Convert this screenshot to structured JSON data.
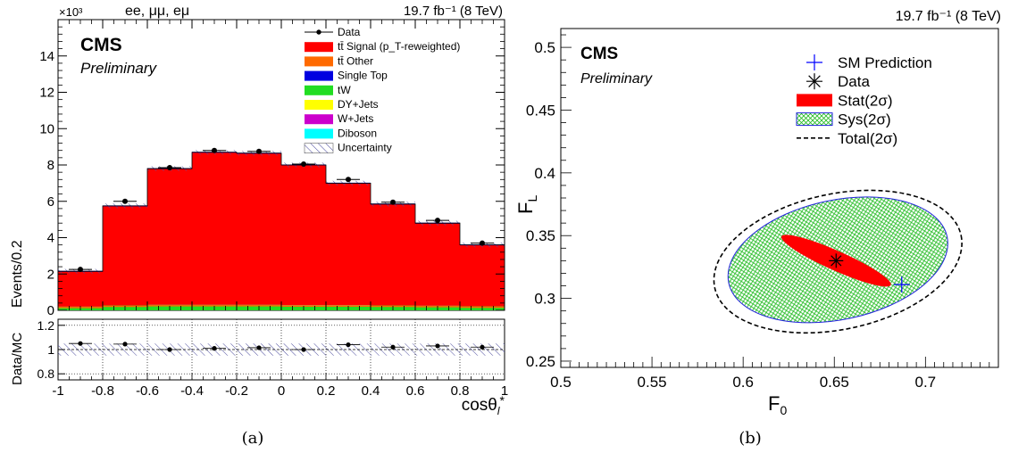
{
  "chart_data": [
    {
      "type": "bar",
      "panel_label": "(a)",
      "channels": "ee, μμ, eμ",
      "lumi": "19.7 fb⁻¹ (8 TeV)",
      "cms": "CMS",
      "preliminary": "Preliminary",
      "ylabel": "Events/0.2",
      "y_exponent": "×10³",
      "ylim": [
        0,
        16
      ],
      "xlim": [
        -1,
        1
      ],
      "xlabel": "cosθ_l*",
      "x_tick_labels": [
        "-1",
        "-0.8",
        "-0.6",
        "-0.4",
        "-0.2",
        "0",
        "0.2",
        "0.4",
        "0.6",
        "0.8",
        "1"
      ],
      "y_tick_labels": [
        "0",
        "2",
        "4",
        "6",
        "8",
        "10",
        "12",
        "14"
      ],
      "bin_edges": [
        -1,
        -0.8,
        -0.6,
        -0.4,
        -0.2,
        0,
        0.2,
        0.4,
        0.6,
        0.8,
        1
      ],
      "signal_totals": [
        2.15,
        5.75,
        7.8,
        8.7,
        8.65,
        8.0,
        7.0,
        5.85,
        4.8,
        3.6
      ],
      "background_stack": [
        0.2,
        0.27,
        0.3,
        0.3,
        0.3,
        0.28,
        0.28,
        0.27,
        0.25,
        0.22
      ],
      "data_points": [
        2.25,
        6.0,
        7.85,
        8.8,
        8.75,
        8.05,
        7.2,
        5.95,
        4.95,
        3.7
      ],
      "legend_position": "top-right",
      "legend": [
        {
          "label": "Data",
          "kind": "marker",
          "color": "#000000"
        },
        {
          "label": "tt̄ Signal (p_T-reweighted)",
          "kind": "box",
          "color": "#ff0000"
        },
        {
          "label": "tt̄ Other",
          "kind": "box",
          "color": "#ff6a00"
        },
        {
          "label": "Single Top",
          "kind": "box",
          "color": "#0000e0"
        },
        {
          "label": "tW",
          "kind": "box",
          "color": "#22dd22"
        },
        {
          "label": "DY+Jets",
          "kind": "box",
          "color": "#ffff00"
        },
        {
          "label": "W+Jets",
          "kind": "box",
          "color": "#cc00cc"
        },
        {
          "label": "Diboson",
          "kind": "box",
          "color": "#00ffff"
        },
        {
          "label": "Uncertainty",
          "kind": "hatch",
          "color": "#6060a0"
        }
      ],
      "ratio": {
        "ylabel": "Data/MC",
        "ylim": [
          0.75,
          1.25
        ],
        "y_tick_labels": [
          "0.8",
          "1",
          "1.2"
        ],
        "values": [
          1.05,
          1.045,
          1.0,
          1.01,
          1.015,
          1.0,
          1.04,
          1.02,
          1.03,
          1.02
        ]
      }
    },
    {
      "type": "scatter",
      "panel_label": "(b)",
      "lumi": "19.7 fb⁻¹ (8 TeV)",
      "cms": "CMS",
      "preliminary": "Preliminary",
      "xlabel": "F₀",
      "ylabel": "F_L",
      "xlim": [
        0.5,
        0.74
      ],
      "ylim": [
        0.245,
        0.515
      ],
      "x_tick_labels": [
        "0.5",
        "0.55",
        "0.6",
        "0.65",
        "0.7"
      ],
      "y_tick_labels": [
        "0.25",
        "0.3",
        "0.35",
        "0.4",
        "0.45",
        "0.5"
      ],
      "sm_prediction": {
        "F0": 0.687,
        "FL": 0.311
      },
      "data_point": {
        "F0": 0.651,
        "FL": 0.33
      },
      "legend_position": "top-right",
      "legend": [
        {
          "label": "SM Prediction",
          "kind": "cross",
          "color": "#0000ff"
        },
        {
          "label": "Data",
          "kind": "star",
          "color": "#000000"
        },
        {
          "label": "Stat(2σ)",
          "kind": "ellipse",
          "color": "#ff0000"
        },
        {
          "label": "Sys(2σ)",
          "kind": "hatch",
          "color": "#22cc22"
        },
        {
          "label": "Total(2σ)",
          "kind": "dashed",
          "color": "#000000"
        }
      ]
    }
  ]
}
